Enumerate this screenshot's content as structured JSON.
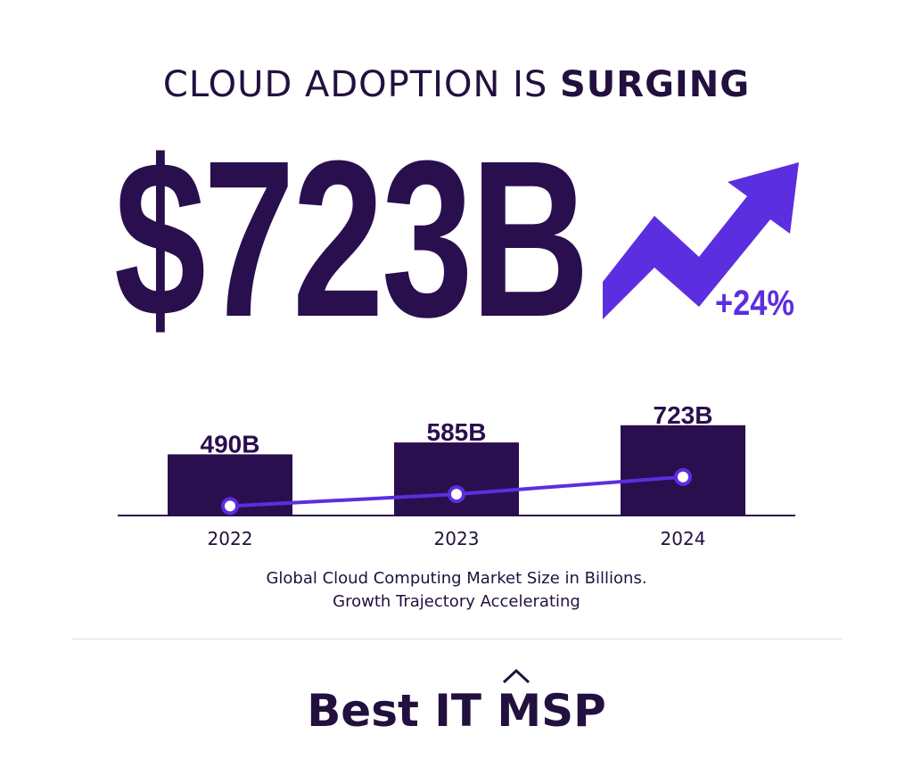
{
  "headline": {
    "light": "CLOUD ADOPTION IS ",
    "bold": "SURGING"
  },
  "hero": {
    "value": "$723B",
    "growth": "+24%",
    "arrow_icon": "trend-up-arrow-icon"
  },
  "chart_data": {
    "type": "bar",
    "categories": [
      "2022",
      "2023",
      "2024"
    ],
    "values": [
      490,
      585,
      723
    ],
    "data_labels": [
      "490B",
      "585B",
      "723B"
    ],
    "title": "",
    "xlabel": "",
    "ylabel": "",
    "ylim": [
      0,
      1000
    ],
    "grid": false,
    "overlay_line": true
  },
  "caption": {
    "line1": "Global Cloud Computing Market Size in Billions.",
    "line2": "Growth Trajectory Accelerating"
  },
  "brand": {
    "name": "Best IT MSP",
    "mark_icon": "caret-up-icon"
  },
  "colors": {
    "dark": "#2a0f4f",
    "accent": "#5b2ee0",
    "line": "#5b2ee0"
  }
}
